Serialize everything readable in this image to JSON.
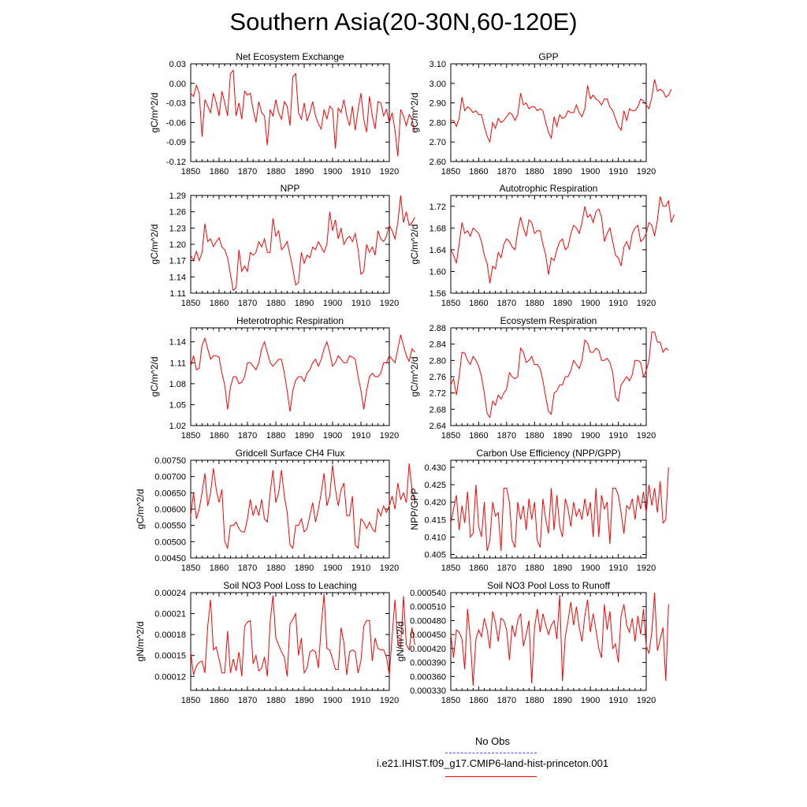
{
  "title": "Southern Asia(20-30N,60-120E)",
  "colors": {
    "series": "#ff0000",
    "obs_line": "#4c4cff",
    "axis": "#000000"
  },
  "legend": {
    "obs_label": "No Obs",
    "case_label": "i.e21.IHIST.f09_g17.CMIP6-land-hist-princeton.001"
  },
  "chart_data": [
    {
      "type": "line",
      "title": "Net Ecosystem Exchange",
      "ylabel": "gC/m^2/d",
      "xlim": [
        1850,
        1920
      ],
      "ylim": [
        -0.12,
        0.03
      ],
      "xticks": [
        "1850",
        "1860",
        "1870",
        "1880",
        "1890",
        "1900",
        "1910",
        "1920"
      ],
      "yticks": [
        "-0.12",
        "-0.09",
        "-0.06",
        "-0.03",
        "0.00",
        "0.03"
      ],
      "x_start": 1850,
      "values": [
        -0.015,
        -0.02,
        -0.003,
        -0.015,
        -0.082,
        -0.025,
        -0.035,
        -0.045,
        -0.015,
        -0.03,
        -0.05,
        -0.012,
        -0.03,
        -0.05,
        0.015,
        0.02,
        -0.05,
        -0.03,
        -0.055,
        -0.012,
        -0.018,
        -0.015,
        -0.04,
        -0.06,
        -0.028,
        -0.045,
        -0.05,
        -0.095,
        -0.04,
        -0.05,
        -0.025,
        -0.045,
        -0.055,
        -0.028,
        -0.035,
        -0.065,
        0.01,
        0.015,
        -0.045,
        -0.055,
        -0.03,
        -0.058,
        -0.045,
        -0.028,
        -0.05,
        -0.062,
        -0.07,
        -0.04,
        -0.055,
        -0.035,
        -0.04,
        -0.1,
        -0.038,
        -0.045,
        -0.025,
        -0.05,
        -0.065,
        -0.035,
        -0.072,
        -0.04,
        -0.015,
        -0.055,
        -0.075,
        -0.02,
        -0.05,
        -0.07,
        -0.028,
        -0.03,
        -0.05,
        -0.04,
        -0.06,
        -0.045,
        -0.072,
        -0.112,
        -0.04,
        -0.05,
        -0.065,
        -0.048,
        -0.055,
        -0.075
      ]
    },
    {
      "type": "line",
      "title": "GPP",
      "ylabel": "gC/m^2/d",
      "xlim": [
        1850,
        1920
      ],
      "ylim": [
        2.6,
        3.1
      ],
      "xticks": [
        "1850",
        "1860",
        "1870",
        "1880",
        "1890",
        "1900",
        "1910",
        "1920"
      ],
      "yticks": [
        "2.60",
        "2.70",
        "2.80",
        "2.90",
        "3.00",
        "3.10"
      ],
      "x_start": 1850,
      "values": [
        2.81,
        2.81,
        2.78,
        2.82,
        2.93,
        2.86,
        2.88,
        2.87,
        2.85,
        2.86,
        2.84,
        2.84,
        2.78,
        2.73,
        2.7,
        2.8,
        2.77,
        2.82,
        2.8,
        2.81,
        2.83,
        2.85,
        2.84,
        2.81,
        2.84,
        2.95,
        2.89,
        2.9,
        2.87,
        2.88,
        2.88,
        2.86,
        2.87,
        2.86,
        2.8,
        2.75,
        2.72,
        2.83,
        2.78,
        2.84,
        2.82,
        2.83,
        2.86,
        2.85,
        2.85,
        2.89,
        2.85,
        2.83,
        2.87,
        2.99,
        2.92,
        2.94,
        2.92,
        2.91,
        2.89,
        2.92,
        2.92,
        2.88,
        2.86,
        2.82,
        2.78,
        2.76,
        2.86,
        2.81,
        2.87,
        2.86,
        2.86,
        2.88,
        2.92,
        2.91,
        2.89,
        2.87,
        2.93,
        3.02,
        2.96,
        2.97,
        2.96,
        2.93,
        2.94,
        2.97
      ]
    },
    {
      "type": "line",
      "title": "NPP",
      "ylabel": "gC/m^2/d",
      "xlim": [
        1850,
        1920
      ],
      "ylim": [
        1.11,
        1.29
      ],
      "xticks": [
        "1850",
        "1860",
        "1870",
        "1880",
        "1890",
        "1900",
        "1910",
        "1920"
      ],
      "yticks": [
        "1.11",
        "1.14",
        "1.17",
        "1.20",
        "1.23",
        "1.26",
        "1.29"
      ],
      "x_start": 1850,
      "values": [
        1.18,
        1.17,
        1.187,
        1.17,
        1.185,
        1.238,
        1.205,
        1.21,
        1.196,
        1.205,
        1.212,
        1.195,
        1.19,
        1.175,
        1.145,
        1.115,
        1.12,
        1.19,
        1.15,
        1.16,
        1.15,
        1.185,
        1.18,
        1.185,
        1.205,
        1.195,
        1.21,
        1.185,
        1.185,
        1.248,
        1.215,
        1.225,
        1.19,
        1.196,
        1.205,
        1.18,
        1.155,
        1.125,
        1.13,
        1.185,
        1.165,
        1.18,
        1.175,
        1.195,
        1.19,
        1.205,
        1.195,
        1.185,
        1.2,
        1.26,
        1.225,
        1.245,
        1.21,
        1.23,
        1.2,
        1.21,
        1.215,
        1.205,
        1.22,
        1.19,
        1.145,
        1.15,
        1.2,
        1.185,
        1.195,
        1.18,
        1.225,
        1.21,
        1.205,
        1.215,
        1.235,
        1.225,
        1.21,
        1.24,
        1.29,
        1.24,
        1.26,
        1.235,
        1.24,
        1.25
      ]
    },
    {
      "type": "line",
      "title": "Autotrophic Respiration",
      "ylabel": "gC/m^2/d",
      "xlim": [
        1850,
        1920
      ],
      "ylim": [
        1.56,
        1.74
      ],
      "xticks": [
        "1850",
        "1860",
        "1870",
        "1880",
        "1890",
        "1900",
        "1910",
        "1920"
      ],
      "yticks": [
        "1.56",
        "1.60",
        "1.64",
        "1.68",
        "1.72"
      ],
      "x_start": 1850,
      "values": [
        1.64,
        1.63,
        1.615,
        1.65,
        1.69,
        1.67,
        1.675,
        1.665,
        1.68,
        1.675,
        1.67,
        1.655,
        1.63,
        1.615,
        1.578,
        1.61,
        1.605,
        1.635,
        1.625,
        1.65,
        1.66,
        1.655,
        1.645,
        1.64,
        1.675,
        1.7,
        1.68,
        1.665,
        1.695,
        1.69,
        1.67,
        1.675,
        1.675,
        1.65,
        1.63,
        1.594,
        1.625,
        1.62,
        1.64,
        1.655,
        1.66,
        1.64,
        1.645,
        1.67,
        1.685,
        1.68,
        1.67,
        1.69,
        1.72,
        1.7,
        1.705,
        1.69,
        1.71,
        1.715,
        1.7,
        1.655,
        1.67,
        1.68,
        1.655,
        1.63,
        1.625,
        1.61,
        1.645,
        1.655,
        1.64,
        1.67,
        1.68,
        1.685,
        1.655,
        1.66,
        1.67,
        1.69,
        1.685,
        1.665,
        1.695,
        1.738,
        1.72,
        1.72,
        1.73,
        1.69,
        1.705
      ]
    },
    {
      "type": "line",
      "title": "Heterotrophic Respiration",
      "ylabel": "gC/m^2/d",
      "xlim": [
        1850,
        1920
      ],
      "ylim": [
        1.02,
        1.16
      ],
      "xticks": [
        "1850",
        "1860",
        "1870",
        "1880",
        "1890",
        "1900",
        "1910",
        "1920"
      ],
      "yticks": [
        "1.02",
        "1.05",
        "1.08",
        "1.11",
        "1.14"
      ],
      "x_start": 1850,
      "values": [
        1.105,
        1.12,
        1.1,
        1.102,
        1.135,
        1.145,
        1.13,
        1.115,
        1.12,
        1.12,
        1.118,
        1.095,
        1.078,
        1.043,
        1.075,
        1.09,
        1.09,
        1.08,
        1.082,
        1.09,
        1.11,
        1.11,
        1.105,
        1.1,
        1.11,
        1.13,
        1.14,
        1.125,
        1.11,
        1.105,
        1.11,
        1.115,
        1.115,
        1.095,
        1.07,
        1.04,
        1.07,
        1.085,
        1.09,
        1.09,
        1.083,
        1.095,
        1.1,
        1.11,
        1.115,
        1.105,
        1.115,
        1.13,
        1.14,
        1.125,
        1.105,
        1.11,
        1.12,
        1.115,
        1.11,
        1.11,
        1.12,
        1.118,
        1.115,
        1.09,
        1.07,
        1.043,
        1.07,
        1.09,
        1.095,
        1.09,
        1.09,
        1.095,
        1.11,
        1.11,
        1.12,
        1.115,
        1.11,
        1.13,
        1.15,
        1.135,
        1.12,
        1.112,
        1.13,
        1.125
      ]
    },
    {
      "type": "line",
      "title": "Ecosystem Respiration",
      "ylabel": "gC/m^2/d",
      "xlim": [
        1850,
        1920
      ],
      "ylim": [
        2.64,
        2.88
      ],
      "xticks": [
        "1850",
        "1860",
        "1870",
        "1880",
        "1890",
        "1900",
        "1910",
        "1920"
      ],
      "yticks": [
        "2.64",
        "2.68",
        "2.72",
        "2.76",
        "2.80",
        "2.84",
        "2.88"
      ],
      "x_start": 1850,
      "values": [
        2.74,
        2.755,
        2.715,
        2.76,
        2.82,
        2.818,
        2.8,
        2.79,
        2.81,
        2.8,
        2.786,
        2.76,
        2.72,
        2.67,
        2.66,
        2.7,
        2.69,
        2.715,
        2.705,
        2.72,
        2.73,
        2.77,
        2.76,
        2.755,
        2.76,
        2.83,
        2.82,
        2.795,
        2.8,
        2.81,
        2.79,
        2.79,
        2.78,
        2.75,
        2.71,
        2.675,
        2.668,
        2.72,
        2.725,
        2.74,
        2.74,
        2.76,
        2.76,
        2.775,
        2.8,
        2.79,
        2.78,
        2.8,
        2.85,
        2.842,
        2.82,
        2.82,
        2.83,
        2.825,
        2.8,
        2.8,
        2.805,
        2.795,
        2.77,
        2.71,
        2.7,
        2.74,
        2.75,
        2.76,
        2.75,
        2.765,
        2.8,
        2.8,
        2.795,
        2.76,
        2.775,
        2.8,
        2.87,
        2.87,
        2.845,
        2.845,
        2.82,
        2.83,
        2.825
      ]
    },
    {
      "type": "line",
      "title": "Gridcell Surface CH4 Flux",
      "ylabel": "gC/m^2/d",
      "xlim": [
        1850,
        1920
      ],
      "ylim": [
        0.0045,
        0.0075
      ],
      "xticks": [
        "1850",
        "1860",
        "1870",
        "1880",
        "1890",
        "1900",
        "1910",
        "1920"
      ],
      "yticks": [
        "0.00450",
        "0.00500",
        "0.00550",
        "0.00600",
        "0.00650",
        "0.00700",
        "0.00750"
      ],
      "x_start": 1850,
      "values": [
        0.0058,
        0.0065,
        0.0057,
        0.006,
        0.0065,
        0.0071,
        0.0061,
        0.0065,
        0.00725,
        0.0066,
        0.0062,
        0.0066,
        0.005,
        0.0048,
        0.0055,
        0.0055,
        0.0056,
        0.0054,
        0.0053,
        0.0053,
        0.0057,
        0.0063,
        0.0058,
        0.0061,
        0.0058,
        0.0063,
        0.0057,
        0.0056,
        0.0065,
        0.0072,
        0.0062,
        0.0065,
        0.0072,
        0.0064,
        0.0059,
        0.0049,
        0.0048,
        0.0055,
        0.0055,
        0.0057,
        0.0053,
        0.0054,
        0.0058,
        0.0062,
        0.0056,
        0.006,
        0.0065,
        0.0071,
        0.0061,
        0.0064,
        0.00735,
        0.0066,
        0.0061,
        0.0066,
        0.0068,
        0.0058,
        0.0058,
        0.0064,
        0.0049,
        0.0048,
        0.0057,
        0.0056,
        0.0054,
        0.0056,
        0.0054,
        0.0053,
        0.006,
        0.0058,
        0.0061,
        0.0059,
        0.0061,
        0.0064,
        0.006,
        0.0068,
        0.0063,
        0.0065,
        0.0062,
        0.0074,
        0.0066,
        0.0062
      ]
    },
    {
      "type": "line",
      "title": "Carbon Use Efficiency (NPP/GPP)",
      "ylabel": "NPP/GPP",
      "xlim": [
        1850,
        1920
      ],
      "ylim": [
        0.404,
        0.432
      ],
      "xticks": [
        "1850",
        "1860",
        "1870",
        "1880",
        "1890",
        "1900",
        "1910",
        "1920"
      ],
      "yticks": [
        "0.405",
        "0.410",
        "0.415",
        "0.420",
        "0.425",
        "0.430"
      ],
      "x_start": 1850,
      "values": [
        0.414,
        0.418,
        0.422,
        0.412,
        0.419,
        0.414,
        0.423,
        0.41,
        0.411,
        0.425,
        0.413,
        0.41,
        0.42,
        0.406,
        0.409,
        0.42,
        0.416,
        0.417,
        0.406,
        0.424,
        0.424,
        0.42,
        0.409,
        0.407,
        0.42,
        0.415,
        0.419,
        0.412,
        0.421,
        0.415,
        0.42,
        0.409,
        0.407,
        0.421,
        0.415,
        0.411,
        0.424,
        0.412,
        0.422,
        0.413,
        0.41,
        0.421,
        0.418,
        0.413,
        0.42,
        0.416,
        0.418,
        0.415,
        0.421,
        0.416,
        0.42,
        0.41,
        0.424,
        0.41,
        0.422,
        0.418,
        0.42,
        0.408,
        0.424,
        0.424,
        0.422,
        0.417,
        0.411,
        0.419,
        0.418,
        0.421,
        0.415,
        0.422,
        0.418,
        0.423,
        0.417,
        0.425,
        0.419,
        0.424,
        0.417,
        0.426,
        0.414,
        0.415,
        0.43
      ]
    },
    {
      "type": "line",
      "title": "Soil NO3 Pool Loss to Leaching",
      "ylabel": "gN/m^2/d",
      "xlim": [
        1850,
        1920
      ],
      "ylim": [
        0.0001,
        0.00024
      ],
      "xticks": [
        "1850",
        "1860",
        "1870",
        "1880",
        "1890",
        "1900",
        "1910",
        "1920"
      ],
      "yticks": [
        "0.00012",
        "0.00015",
        "0.00018",
        "0.00021",
        "0.00024"
      ],
      "x_start": 1850,
      "values": [
        0.000155,
        0.000122,
        0.000135,
        0.00014,
        0.000142,
        0.000125,
        0.000192,
        0.00023,
        0.000158,
        0.000162,
        0.000145,
        0.000125,
        0.000125,
        0.000185,
        0.000125,
        0.000145,
        0.000128,
        0.000155,
        0.00012,
        0.000192,
        0.000198,
        0.0002,
        0.000138,
        0.00015,
        0.000128,
        0.000132,
        0.000148,
        0.00012,
        0.000198,
        0.000236,
        0.000175,
        0.000165,
        0.000155,
        0.000148,
        0.00012,
        0.000195,
        0.000202,
        0.00021,
        0.00015,
        0.000175,
        0.000125,
        0.000132,
        0.000155,
        0.000158,
        0.000155,
        0.000132,
        0.000192,
        0.000238,
        0.00016,
        0.000158,
        0.000145,
        0.00013,
        0.00013,
        0.00019,
        0.000168,
        0.000122,
        0.000155,
        0.000158,
        0.000155,
        0.000125,
        0.000142,
        0.000192,
        0.0002,
        0.0002,
        0.000142,
        0.000175,
        0.00016,
        0.000158,
        0.000158,
        0.000148,
        0.000122,
        0.000178,
        0.00023,
        0.000165,
        0.000162,
        0.000235,
        0.000165,
        0.000158,
        0.00019,
        0.000165
      ]
    },
    {
      "type": "line",
      "title": "Soil NO3 Pool Loss to Runoff",
      "ylabel": "gN/m^2/d",
      "xlim": [
        1850,
        1920
      ],
      "ylim": [
        0.00033,
        0.00054
      ],
      "xticks": [
        "1850",
        "1860",
        "1870",
        "1880",
        "1890",
        "1900",
        "1910",
        "1920"
      ],
      "yticks": [
        "0.000330",
        "0.000360",
        "0.000390",
        "0.000420",
        "0.000450",
        "0.000480",
        "0.000510",
        "0.000540"
      ],
      "x_start": 1850,
      "values": [
        0.00045,
        0.0004,
        0.00046,
        0.000455,
        0.00044,
        0.000375,
        0.000505,
        0.00044,
        0.00034,
        0.00044,
        0.00046,
        0.000445,
        0.000485,
        0.00046,
        0.00042,
        0.0005,
        0.000475,
        0.000435,
        0.000485,
        0.00048,
        0.00046,
        0.000395,
        0.00047,
        0.000445,
        0.00048,
        0.000495,
        0.000425,
        0.00045,
        0.00048,
        0.000345,
        0.000465,
        0.000505,
        0.000455,
        0.000495,
        0.00047,
        0.00045,
        0.00047,
        0.00048,
        0.00044,
        0.000535,
        0.00035,
        0.000445,
        0.00048,
        0.00052,
        0.00047,
        0.00051,
        0.000465,
        0.000435,
        0.00049,
        0.000525,
        0.000455,
        0.000495,
        0.00046,
        0.00042,
        0.0004,
        0.000515,
        0.00046,
        0.0005,
        0.00042,
        0.00043,
        0.00039,
        0.00049,
        0.000515,
        0.00047,
        0.000455,
        0.000485,
        0.000435,
        0.00049,
        0.00045,
        0.000505,
        0.000425,
        0.00041,
        0.000455,
        0.00054,
        0.000415,
        0.00044,
        0.000465,
        0.00035,
        0.000515
      ]
    }
  ]
}
